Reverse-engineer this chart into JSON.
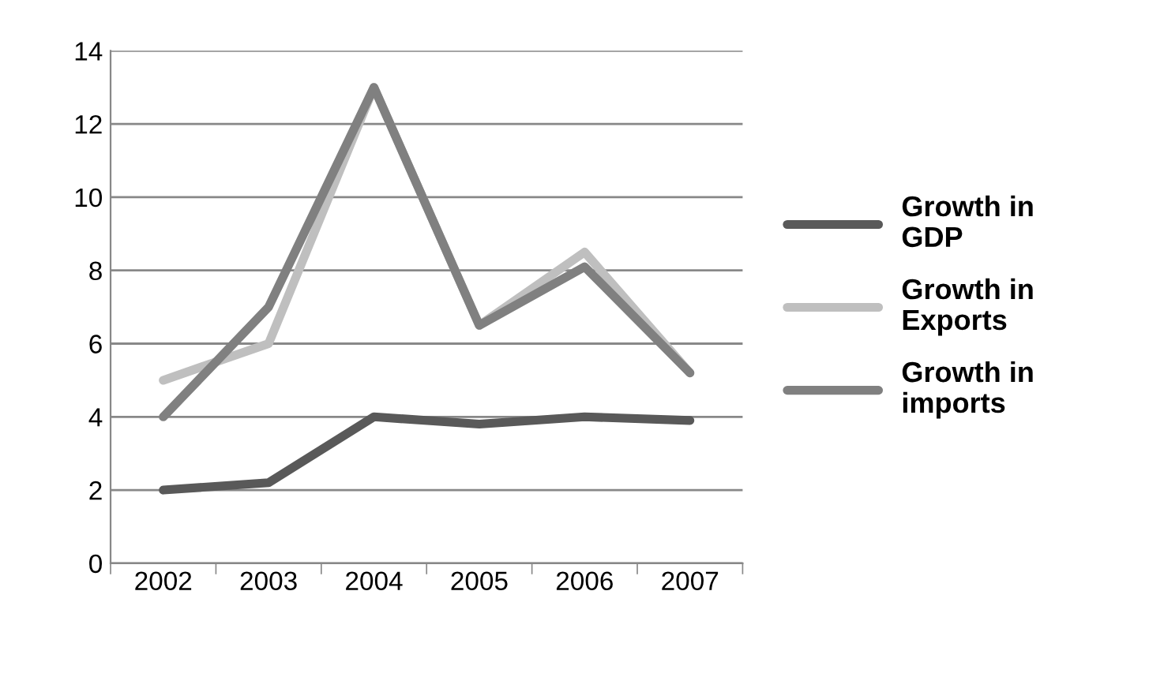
{
  "chart_data": {
    "type": "line",
    "categories": [
      "2002",
      "2003",
      "2004",
      "2005",
      "2006",
      "2007"
    ],
    "series": [
      {
        "name": "Growth in GDP",
        "color": "#595959",
        "values": [
          2,
          2.2,
          4,
          3.8,
          4,
          3.9
        ]
      },
      {
        "name": "Growth in Exports",
        "color": "#bfbfbf",
        "values": [
          5,
          6,
          13,
          6.5,
          8.5,
          5.2
        ]
      },
      {
        "name": "Growth in imports",
        "color": "#808080",
        "values": [
          4,
          7,
          13,
          6.5,
          8.1,
          5.2
        ]
      }
    ],
    "ylim": [
      0,
      14
    ],
    "yticks": [
      0,
      2,
      4,
      6,
      8,
      10,
      12,
      14
    ],
    "grid": "y",
    "legend": "right",
    "marker": "none",
    "line_style": "solid"
  }
}
